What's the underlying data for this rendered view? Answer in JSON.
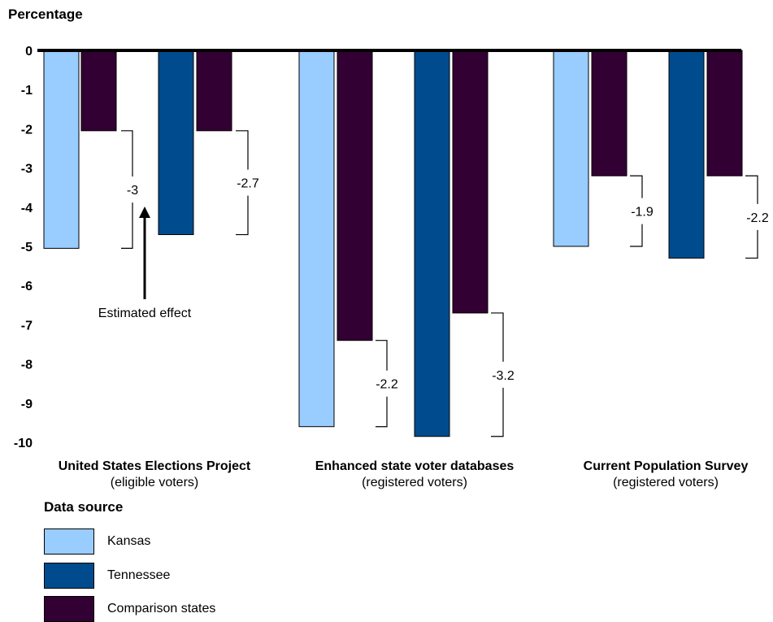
{
  "chart_data": {
    "type": "bar",
    "ylabel": "Percentage",
    "ylim": [
      -10,
      0
    ],
    "yticks": [
      "0",
      "-1",
      "-2",
      "-3",
      "-4",
      "-5",
      "-6",
      "-7",
      "-8",
      "-9",
      "-10"
    ],
    "legend_title": "Data source",
    "series": [
      {
        "name": "Kansas",
        "color": "#99ccff"
      },
      {
        "name": "Tennessee",
        "color": "#004b8d"
      },
      {
        "name": "Comparison states",
        "color": "#330033"
      }
    ],
    "groups": [
      {
        "title": "United States Elections Project",
        "subtitle": "(eligible voters)",
        "bars": [
          {
            "series": "Kansas",
            "value": -5.05
          },
          {
            "series": "Comparison states",
            "value": -2.05
          },
          {
            "series": "Tennessee",
            "value": -4.7
          },
          {
            "series": "Comparison states",
            "value": -2.05
          }
        ],
        "effects": [
          {
            "label": "-3",
            "from": -2.05,
            "to": -5.05
          },
          {
            "label": "-2.7",
            "from": -2.05,
            "to": -4.7
          }
        ]
      },
      {
        "title": "Enhanced state voter databases",
        "subtitle": "(registered voters)",
        "bars": [
          {
            "series": "Kansas",
            "value": -9.6
          },
          {
            "series": "Comparison states",
            "value": -7.4
          },
          {
            "series": "Tennessee",
            "value": -9.85
          },
          {
            "series": "Comparison states",
            "value": -6.7
          }
        ],
        "effects": [
          {
            "label": "-2.2",
            "from": -7.4,
            "to": -9.6
          },
          {
            "label": "-3.2",
            "from": -6.7,
            "to": -9.85
          }
        ]
      },
      {
        "title": "Current Population Survey",
        "subtitle": "(registered voters)",
        "bars": [
          {
            "series": "Kansas",
            "value": -5.0
          },
          {
            "series": "Comparison states",
            "value": -3.2
          },
          {
            "series": "Tennessee",
            "value": -5.3
          },
          {
            "series": "Comparison states",
            "value": -3.2
          }
        ],
        "effects": [
          {
            "label": "-1.9",
            "from": -3.2,
            "to": -5.0
          },
          {
            "label": "-2.2",
            "from": -3.2,
            "to": -5.3
          }
        ]
      }
    ],
    "annotation": "Estimated effect"
  }
}
